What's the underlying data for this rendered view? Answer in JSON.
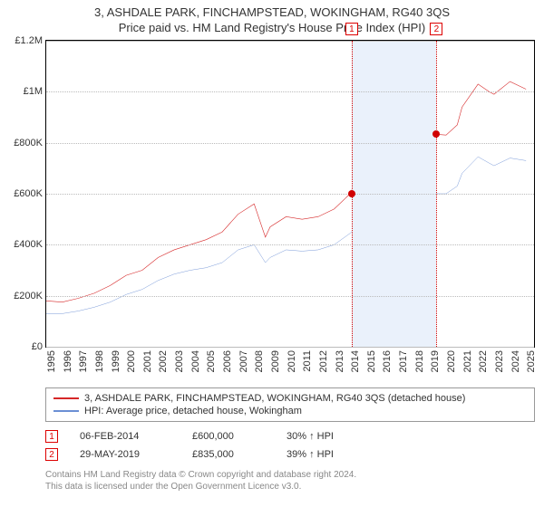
{
  "title": "3, ASHDALE PARK, FINCHAMPSTEAD, WOKINGHAM, RG40 3QS",
  "subtitle": "Price paid vs. HM Land Registry's House Price Index (HPI)",
  "chart": {
    "type": "line",
    "xlim": [
      1995,
      2025.5
    ],
    "ylim": [
      0,
      1200000
    ],
    "ytick_step": 200000,
    "yticks": [
      {
        "v": 0,
        "label": "£0"
      },
      {
        "v": 200000,
        "label": "£200K"
      },
      {
        "v": 400000,
        "label": "£400K"
      },
      {
        "v": 600000,
        "label": "£600K"
      },
      {
        "v": 800000,
        "label": "£800K"
      },
      {
        "v": 1000000,
        "label": "£1M"
      },
      {
        "v": 1200000,
        "label": "£1.2M"
      }
    ],
    "xticks": [
      1995,
      1996,
      1997,
      1998,
      1999,
      2000,
      2001,
      2002,
      2003,
      2004,
      2005,
      2006,
      2007,
      2008,
      2009,
      2010,
      2011,
      2012,
      2013,
      2014,
      2015,
      2016,
      2017,
      2018,
      2019,
      2020,
      2021,
      2022,
      2023,
      2024,
      2025
    ],
    "background_color": "#ffffff",
    "grid_color": "#bbbbbb",
    "band": {
      "from": 2014.1,
      "to": 2019.4,
      "color": "#eaf1fb"
    },
    "vlines": [
      {
        "x": 2014.1,
        "color": "#d00000"
      },
      {
        "x": 2019.4,
        "color": "#d00000"
      }
    ],
    "markers_top": [
      {
        "x": 2014.1,
        "label": "1"
      },
      {
        "x": 2019.4,
        "label": "2"
      }
    ],
    "sale_points": [
      {
        "x": 2014.1,
        "y": 600000,
        "color": "#d00000"
      },
      {
        "x": 2019.4,
        "y": 835000,
        "color": "#d00000"
      }
    ],
    "series": [
      {
        "name": "property",
        "label": "3, ASHDALE PARK, FINCHAMPSTEAD, WOKINGHAM, RG40 3QS (detached house)",
        "color": "#d62728",
        "width": 2,
        "data": [
          [
            1995,
            180000
          ],
          [
            1996,
            175000
          ],
          [
            1997,
            190000
          ],
          [
            1998,
            210000
          ],
          [
            1999,
            240000
          ],
          [
            2000,
            280000
          ],
          [
            2001,
            300000
          ],
          [
            2002,
            350000
          ],
          [
            2003,
            380000
          ],
          [
            2004,
            400000
          ],
          [
            2005,
            420000
          ],
          [
            2006,
            450000
          ],
          [
            2007,
            520000
          ],
          [
            2008,
            560000
          ],
          [
            2008.7,
            430000
          ],
          [
            2009,
            470000
          ],
          [
            2010,
            510000
          ],
          [
            2011,
            500000
          ],
          [
            2012,
            510000
          ],
          [
            2013,
            540000
          ],
          [
            2014,
            600000
          ],
          [
            2014.7,
            700000
          ],
          [
            2015,
            750000
          ],
          [
            2016,
            800000
          ],
          [
            2017,
            820000
          ],
          [
            2018,
            830000
          ],
          [
            2019,
            835000
          ],
          [
            2020,
            830000
          ],
          [
            2020.7,
            870000
          ],
          [
            2021,
            940000
          ],
          [
            2022,
            1030000
          ],
          [
            2022.7,
            1000000
          ],
          [
            2023,
            990000
          ],
          [
            2024,
            1040000
          ],
          [
            2025,
            1010000
          ]
        ]
      },
      {
        "name": "hpi",
        "label": "HPI: Average price, detached house, Wokingham",
        "color": "#6b8fd4",
        "width": 1.5,
        "data": [
          [
            1995,
            130000
          ],
          [
            1996,
            130000
          ],
          [
            1997,
            140000
          ],
          [
            1998,
            155000
          ],
          [
            1999,
            175000
          ],
          [
            2000,
            205000
          ],
          [
            2001,
            225000
          ],
          [
            2002,
            260000
          ],
          [
            2003,
            285000
          ],
          [
            2004,
            300000
          ],
          [
            2005,
            310000
          ],
          [
            2006,
            330000
          ],
          [
            2007,
            380000
          ],
          [
            2008,
            400000
          ],
          [
            2008.7,
            330000
          ],
          [
            2009,
            350000
          ],
          [
            2010,
            380000
          ],
          [
            2011,
            375000
          ],
          [
            2012,
            380000
          ],
          [
            2013,
            400000
          ],
          [
            2014,
            445000
          ],
          [
            2015,
            510000
          ],
          [
            2016,
            565000
          ],
          [
            2017,
            600000
          ],
          [
            2018,
            610000
          ],
          [
            2019,
            600000
          ],
          [
            2020,
            600000
          ],
          [
            2020.7,
            630000
          ],
          [
            2021,
            680000
          ],
          [
            2022,
            745000
          ],
          [
            2022.7,
            720000
          ],
          [
            2023,
            710000
          ],
          [
            2024,
            740000
          ],
          [
            2025,
            730000
          ]
        ]
      }
    ]
  },
  "legend": {
    "items": [
      {
        "color": "#d62728",
        "label": "3, ASHDALE PARK, FINCHAMPSTEAD, WOKINGHAM, RG40 3QS (detached house)"
      },
      {
        "color": "#6b8fd4",
        "label": "HPI: Average price, detached house, Wokingham"
      }
    ]
  },
  "sales": [
    {
      "idx": "1",
      "date": "06-FEB-2014",
      "price": "£600,000",
      "pct": "30% ↑ HPI"
    },
    {
      "idx": "2",
      "date": "29-MAY-2019",
      "price": "£835,000",
      "pct": "39% ↑ HPI"
    }
  ],
  "footer": {
    "line1": "Contains HM Land Registry data © Crown copyright and database right 2024.",
    "line2": "This data is licensed under the Open Government Licence v3.0."
  }
}
